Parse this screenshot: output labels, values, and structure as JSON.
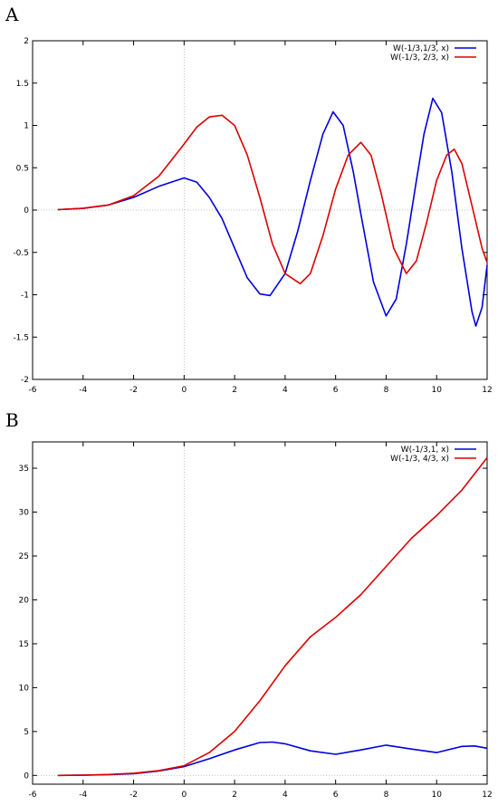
{
  "figure": {
    "panel_a_label": "A",
    "panel_b_label": "B"
  },
  "chart_data": [
    {
      "type": "line",
      "panel": "A",
      "xlim": [
        -6,
        12
      ],
      "ylim": [
        -2,
        2
      ],
      "xticks": [
        -6,
        -4,
        -2,
        0,
        2,
        4,
        6,
        8,
        10,
        12
      ],
      "yticks": [
        -2,
        -1.5,
        -1,
        -0.5,
        0,
        0.5,
        1,
        1.5,
        2
      ],
      "tick_labels_x": [
        "-6",
        "-4",
        "-2",
        "0",
        "2",
        "4",
        "6",
        "8",
        "10",
        "12"
      ],
      "tick_labels_y": [
        "-2",
        "-1.5",
        "-1",
        "-0.5",
        "0",
        "0.5",
        "1",
        "1.5",
        "2"
      ],
      "legend_position": "top-right",
      "grid": false,
      "series": [
        {
          "name": "W(-1/3,1/3, x)",
          "color": "#0000dd",
          "points": [
            [
              -5,
              0.005
            ],
            [
              -4,
              0.02
            ],
            [
              -3,
              0.06
            ],
            [
              -2,
              0.15
            ],
            [
              -1,
              0.28
            ],
            [
              0,
              0.38
            ],
            [
              0.5,
              0.33
            ],
            [
              1,
              0.15
            ],
            [
              1.5,
              -0.1
            ],
            [
              2,
              -0.45
            ],
            [
              2.5,
              -0.8
            ],
            [
              3,
              -0.99
            ],
            [
              3.4,
              -1.01
            ],
            [
              4,
              -0.75
            ],
            [
              4.5,
              -0.25
            ],
            [
              5,
              0.35
            ],
            [
              5.5,
              0.9
            ],
            [
              5.9,
              1.16
            ],
            [
              6.3,
              1.0
            ],
            [
              6.7,
              0.45
            ],
            [
              7,
              -0.05
            ],
            [
              7.5,
              -0.85
            ],
            [
              8,
              -1.25
            ],
            [
              8.4,
              -1.05
            ],
            [
              8.8,
              -0.4
            ],
            [
              9.2,
              0.35
            ],
            [
              9.5,
              0.9
            ],
            [
              9.85,
              1.32
            ],
            [
              10.2,
              1.15
            ],
            [
              10.6,
              0.45
            ],
            [
              11,
              -0.45
            ],
            [
              11.4,
              -1.2
            ],
            [
              11.55,
              -1.37
            ],
            [
              11.8,
              -1.15
            ],
            [
              12,
              -0.65
            ]
          ]
        },
        {
          "name": "W(-1/3, 2/3, x)",
          "color": "#dd0000",
          "points": [
            [
              -5,
              0.005
            ],
            [
              -4,
              0.02
            ],
            [
              -3,
              0.06
            ],
            [
              -2,
              0.17
            ],
            [
              -1,
              0.4
            ],
            [
              0,
              0.78
            ],
            [
              0.5,
              0.98
            ],
            [
              1,
              1.1
            ],
            [
              1.5,
              1.12
            ],
            [
              2,
              1.0
            ],
            [
              2.5,
              0.65
            ],
            [
              3,
              0.15
            ],
            [
              3.5,
              -0.4
            ],
            [
              4,
              -0.75
            ],
            [
              4.6,
              -0.87
            ],
            [
              5,
              -0.75
            ],
            [
              5.5,
              -0.3
            ],
            [
              6,
              0.25
            ],
            [
              6.5,
              0.65
            ],
            [
              7,
              0.8
            ],
            [
              7.4,
              0.65
            ],
            [
              7.8,
              0.2
            ],
            [
              8.3,
              -0.45
            ],
            [
              8.8,
              -0.75
            ],
            [
              9.2,
              -0.6
            ],
            [
              9.6,
              -0.15
            ],
            [
              10,
              0.35
            ],
            [
              10.4,
              0.65
            ],
            [
              10.7,
              0.72
            ],
            [
              11,
              0.55
            ],
            [
              11.4,
              0.05
            ],
            [
              11.8,
              -0.45
            ],
            [
              12,
              -0.62
            ]
          ]
        }
      ]
    },
    {
      "type": "line",
      "panel": "B",
      "xlim": [
        -6,
        12
      ],
      "ylim": [
        -1,
        38
      ],
      "xticks": [
        -6,
        -4,
        -2,
        0,
        2,
        4,
        6,
        8,
        10,
        12
      ],
      "yticks": [
        0,
        5,
        10,
        15,
        20,
        25,
        30,
        35
      ],
      "tick_labels_x": [
        "-6",
        "-4",
        "-2",
        "0",
        "2",
        "4",
        "6",
        "8",
        "10",
        "12"
      ],
      "tick_labels_y": [
        "0",
        "5",
        "10",
        "15",
        "20",
        "25",
        "30",
        "35"
      ],
      "legend_position": "top-right",
      "grid": false,
      "series": [
        {
          "name": "W(-1/3,1, x)",
          "color": "#0000dd",
          "points": [
            [
              -5,
              0.0
            ],
            [
              -4,
              0.02
            ],
            [
              -3,
              0.08
            ],
            [
              -2,
              0.2
            ],
            [
              -1,
              0.5
            ],
            [
              0,
              1.0
            ],
            [
              1,
              1.9
            ],
            [
              2,
              2.9
            ],
            [
              3,
              3.75
            ],
            [
              3.5,
              3.8
            ],
            [
              4,
              3.6
            ],
            [
              5,
              2.8
            ],
            [
              6,
              2.4
            ],
            [
              7,
              2.9
            ],
            [
              8,
              3.45
            ],
            [
              9,
              3.0
            ],
            [
              10,
              2.6
            ],
            [
              11,
              3.3
            ],
            [
              11.5,
              3.35
            ],
            [
              12,
              3.1
            ]
          ]
        },
        {
          "name": "W(-1/3, 4/3, x)",
          "color": "#dd0000",
          "points": [
            [
              -5,
              0.0
            ],
            [
              -4,
              0.03
            ],
            [
              -3,
              0.1
            ],
            [
              -2,
              0.25
            ],
            [
              -1,
              0.55
            ],
            [
              0,
              1.1
            ],
            [
              1,
              2.6
            ],
            [
              2,
              5.0
            ],
            [
              3,
              8.5
            ],
            [
              4,
              12.5
            ],
            [
              5,
              15.8
            ],
            [
              6,
              18.0
            ],
            [
              7,
              20.6
            ],
            [
              8,
              23.8
            ],
            [
              9,
              27.0
            ],
            [
              10,
              29.6
            ],
            [
              11,
              32.5
            ],
            [
              12,
              36.2
            ]
          ]
        }
      ]
    }
  ]
}
